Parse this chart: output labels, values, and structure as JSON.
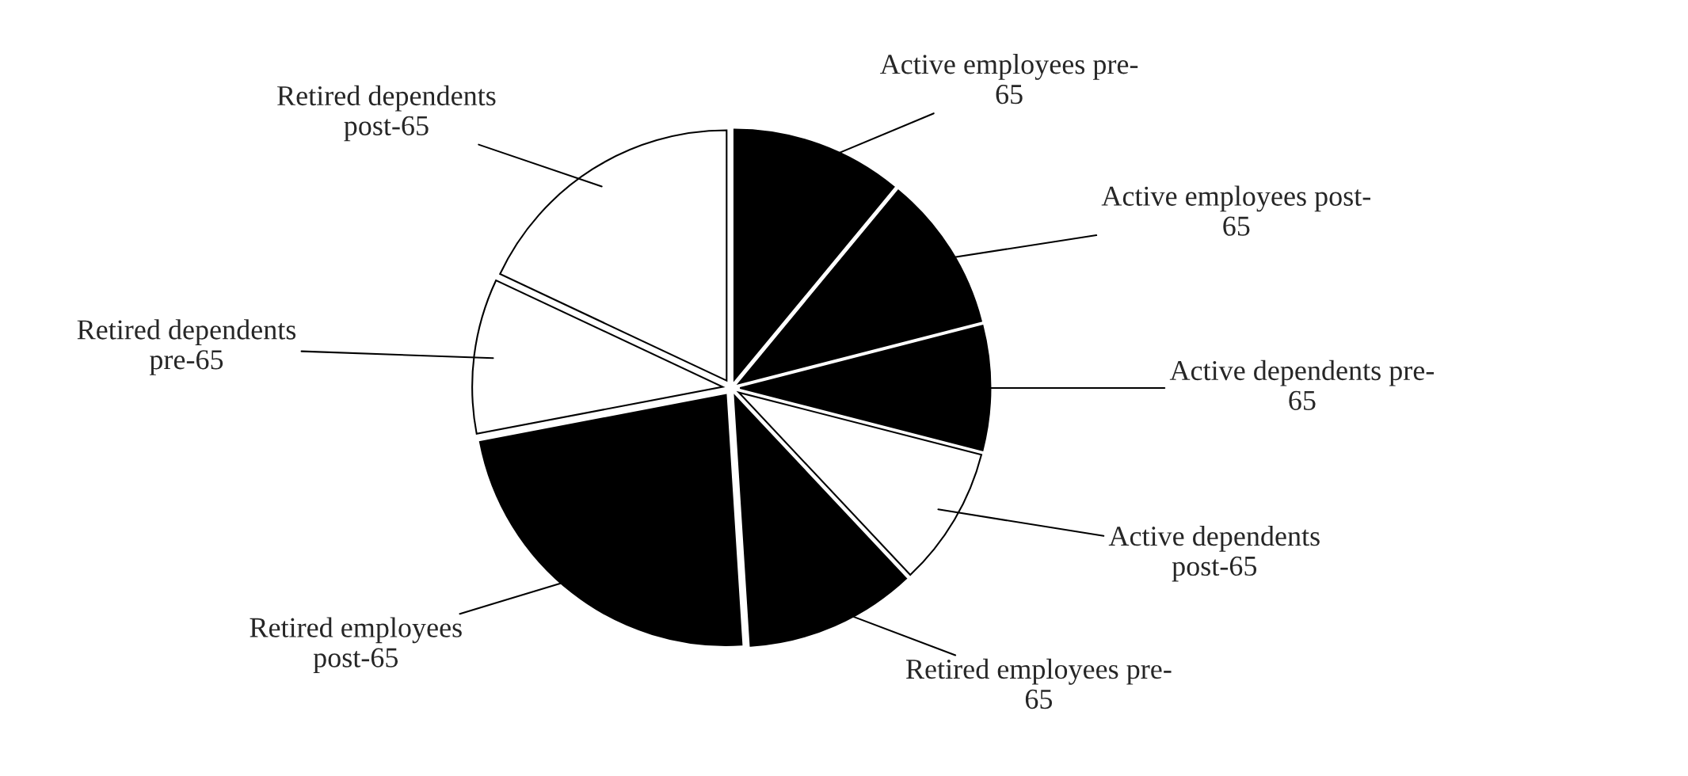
{
  "chart_data": {
    "type": "pie",
    "categories": [
      "Active employees pre-\n65",
      "Active employees post-\n65",
      "Active dependents pre-\n65",
      "Active dependents\npost-65",
      "Retired employees pre-\n65",
      "Retired employees\npost-65",
      "Retired dependents\npre-65",
      "Retired dependents\npost-65"
    ],
    "values": [
      11,
      10,
      8,
      9,
      11,
      23,
      10,
      18
    ],
    "colors": [
      "#000000",
      "#000000",
      "#000000",
      "#ffffff",
      "#000000",
      "#000000",
      "#ffffff",
      "#ffffff"
    ]
  }
}
